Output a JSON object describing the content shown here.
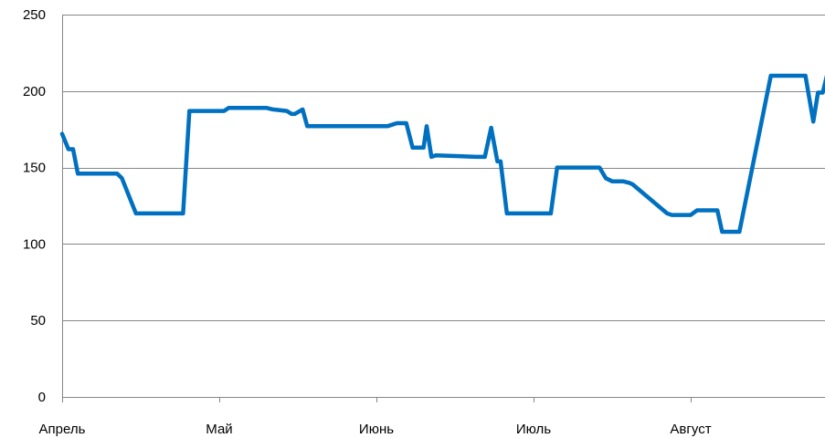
{
  "chart_data": {
    "type": "line",
    "title": "",
    "xlabel": "",
    "ylabel": "",
    "ylim": [
      0,
      250
    ],
    "yticks": [
      "0",
      "50",
      "100",
      "150",
      "200",
      "250"
    ],
    "x_tick_labels": [
      "Апрель",
      "Май",
      "Июнь",
      "Июль",
      "Август"
    ],
    "grid": true,
    "legend": "none",
    "color": "#0070C0",
    "x_range": [
      0,
      4.92
    ],
    "series": [
      {
        "x": [
          0,
          0.04,
          0.07,
          0.1,
          0.12,
          0.35,
          0.38,
          0.47,
          0.77,
          0.81,
          1.0,
          1.03,
          1.06,
          1.3,
          1.34,
          1.43,
          1.46,
          1.48,
          1.53,
          1.56,
          2.03,
          2.07,
          2.1,
          2.13,
          2.19,
          2.23,
          2.25,
          2.26,
          2.28,
          2.3,
          2.32,
          2.35,
          2.38,
          2.64,
          2.69,
          2.73,
          2.77,
          2.79,
          2.83,
          3.11,
          3.15,
          3.31,
          3.38,
          3.42,
          3.46,
          3.5,
          3.57,
          3.61,
          3.63,
          3.85,
          3.88,
          3.97,
          4.0,
          4.04,
          4.17,
          4.2,
          4.27,
          4.31,
          4.51,
          4.55,
          4.73,
          4.78,
          4.81,
          4.84,
          4.92
        ],
        "values": [
          172,
          162,
          162,
          146,
          146,
          146,
          143,
          120,
          120,
          187,
          187,
          187,
          189,
          189,
          188,
          187,
          185,
          185,
          188,
          177,
          177,
          177,
          178,
          179,
          179,
          163,
          163,
          163,
          163,
          163,
          177,
          157,
          158,
          157,
          157,
          176,
          154,
          154,
          120,
          120,
          150,
          150,
          150,
          150,
          143,
          141,
          141,
          140,
          139,
          120,
          119,
          119,
          119,
          122,
          122,
          108,
          108,
          108,
          210,
          210,
          210,
          180,
          199,
          199,
          232
        ]
      }
    ]
  }
}
